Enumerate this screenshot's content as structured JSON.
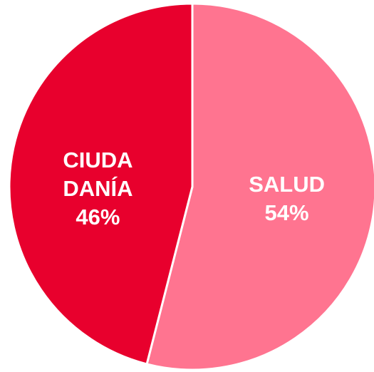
{
  "chart_data": {
    "type": "pie",
    "categories": [
      "SALUD",
      "CIUDADANÍA"
    ],
    "values": [
      54,
      46
    ],
    "value_labels": [
      "54%",
      "46%"
    ],
    "colors": [
      "#ff7490",
      "#e8002d"
    ]
  }
}
